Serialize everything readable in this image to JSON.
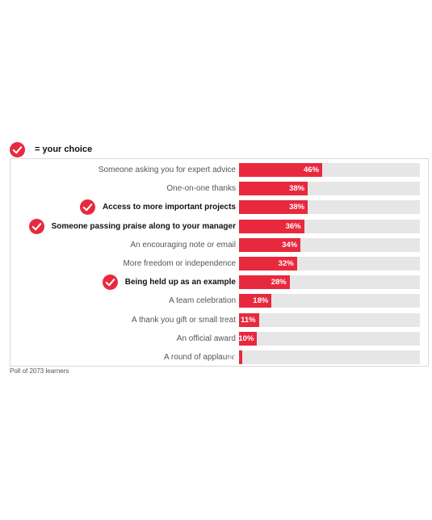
{
  "legend": {
    "label": "= your choice",
    "icon": "checkmark-circle-icon",
    "icon_color": "#e8293d"
  },
  "colors": {
    "bar": "#e8293d",
    "track": "#e6e6e6"
  },
  "footnote": "Poll of 2073 learners",
  "chart_data": {
    "type": "bar",
    "orientation": "horizontal",
    "xlim": [
      0,
      100
    ],
    "grid": false,
    "categories": [
      "Someone asking you for expert advice",
      "One-on-one thanks",
      "Access to more important projects",
      "Someone passing praise along to your manager",
      "An encouraging note or email",
      "More freedom or independence",
      "Being held up as an example",
      "A team celebration",
      "A thank you gift or small treat",
      "An official award",
      "A round of applause"
    ],
    "values": [
      46,
      38,
      38,
      36,
      34,
      32,
      28,
      18,
      11,
      10,
      2
    ],
    "value_labels": [
      "46%",
      "38%",
      "38%",
      "36%",
      "34%",
      "32%",
      "28%",
      "18%",
      "11%",
      "10%",
      "2%"
    ],
    "selected": [
      false,
      false,
      true,
      true,
      false,
      false,
      true,
      false,
      false,
      false,
      false
    ]
  }
}
